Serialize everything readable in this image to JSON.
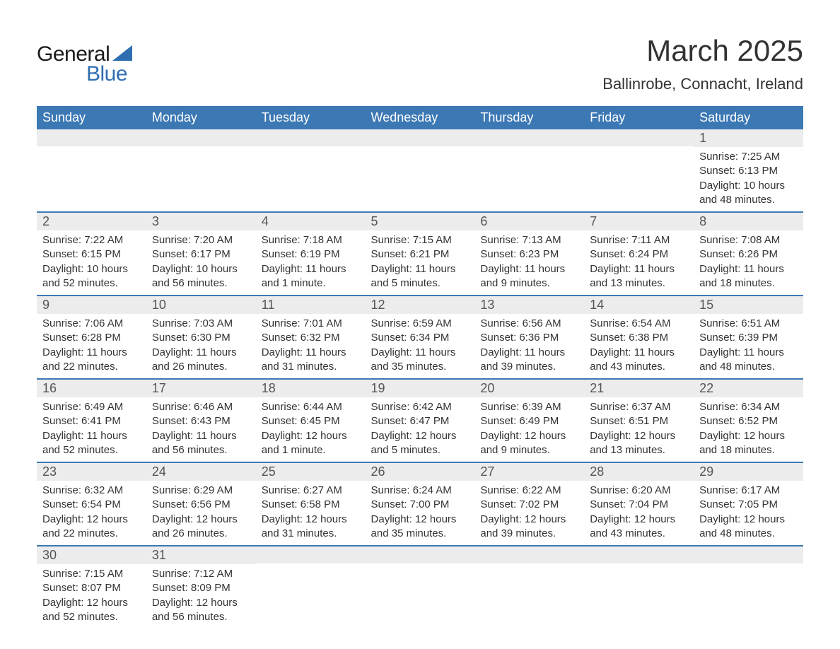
{
  "brand": {
    "word1": "General",
    "word2": "Blue",
    "accent_color": "#2f6fb1"
  },
  "title": "March 2025",
  "location": "Ballinrobe, Connacht, Ireland",
  "colors": {
    "header_bg": "#3c78b4",
    "header_text": "#ffffff",
    "row_divider": "#3c78b4",
    "daynum_bg": "#ececec",
    "daynum_text": "#555555",
    "body_text": "#333333",
    "page_bg": "#ffffff"
  },
  "typography": {
    "title_fontsize": 42,
    "location_fontsize": 22,
    "dayheader_fontsize": 18,
    "daynum_fontsize": 18,
    "body_fontsize": 15
  },
  "day_headers": [
    "Sunday",
    "Monday",
    "Tuesday",
    "Wednesday",
    "Thursday",
    "Friday",
    "Saturday"
  ],
  "weeks": [
    [
      {
        "n": "",
        "sr": "",
        "ss": "",
        "dl": ""
      },
      {
        "n": "",
        "sr": "",
        "ss": "",
        "dl": ""
      },
      {
        "n": "",
        "sr": "",
        "ss": "",
        "dl": ""
      },
      {
        "n": "",
        "sr": "",
        "ss": "",
        "dl": ""
      },
      {
        "n": "",
        "sr": "",
        "ss": "",
        "dl": ""
      },
      {
        "n": "",
        "sr": "",
        "ss": "",
        "dl": ""
      },
      {
        "n": "1",
        "sr": "Sunrise: 7:25 AM",
        "ss": "Sunset: 6:13 PM",
        "dl": "Daylight: 10 hours and 48 minutes."
      }
    ],
    [
      {
        "n": "2",
        "sr": "Sunrise: 7:22 AM",
        "ss": "Sunset: 6:15 PM",
        "dl": "Daylight: 10 hours and 52 minutes."
      },
      {
        "n": "3",
        "sr": "Sunrise: 7:20 AM",
        "ss": "Sunset: 6:17 PM",
        "dl": "Daylight: 10 hours and 56 minutes."
      },
      {
        "n": "4",
        "sr": "Sunrise: 7:18 AM",
        "ss": "Sunset: 6:19 PM",
        "dl": "Daylight: 11 hours and 1 minute."
      },
      {
        "n": "5",
        "sr": "Sunrise: 7:15 AM",
        "ss": "Sunset: 6:21 PM",
        "dl": "Daylight: 11 hours and 5 minutes."
      },
      {
        "n": "6",
        "sr": "Sunrise: 7:13 AM",
        "ss": "Sunset: 6:23 PM",
        "dl": "Daylight: 11 hours and 9 minutes."
      },
      {
        "n": "7",
        "sr": "Sunrise: 7:11 AM",
        "ss": "Sunset: 6:24 PM",
        "dl": "Daylight: 11 hours and 13 minutes."
      },
      {
        "n": "8",
        "sr": "Sunrise: 7:08 AM",
        "ss": "Sunset: 6:26 PM",
        "dl": "Daylight: 11 hours and 18 minutes."
      }
    ],
    [
      {
        "n": "9",
        "sr": "Sunrise: 7:06 AM",
        "ss": "Sunset: 6:28 PM",
        "dl": "Daylight: 11 hours and 22 minutes."
      },
      {
        "n": "10",
        "sr": "Sunrise: 7:03 AM",
        "ss": "Sunset: 6:30 PM",
        "dl": "Daylight: 11 hours and 26 minutes."
      },
      {
        "n": "11",
        "sr": "Sunrise: 7:01 AM",
        "ss": "Sunset: 6:32 PM",
        "dl": "Daylight: 11 hours and 31 minutes."
      },
      {
        "n": "12",
        "sr": "Sunrise: 6:59 AM",
        "ss": "Sunset: 6:34 PM",
        "dl": "Daylight: 11 hours and 35 minutes."
      },
      {
        "n": "13",
        "sr": "Sunrise: 6:56 AM",
        "ss": "Sunset: 6:36 PM",
        "dl": "Daylight: 11 hours and 39 minutes."
      },
      {
        "n": "14",
        "sr": "Sunrise: 6:54 AM",
        "ss": "Sunset: 6:38 PM",
        "dl": "Daylight: 11 hours and 43 minutes."
      },
      {
        "n": "15",
        "sr": "Sunrise: 6:51 AM",
        "ss": "Sunset: 6:39 PM",
        "dl": "Daylight: 11 hours and 48 minutes."
      }
    ],
    [
      {
        "n": "16",
        "sr": "Sunrise: 6:49 AM",
        "ss": "Sunset: 6:41 PM",
        "dl": "Daylight: 11 hours and 52 minutes."
      },
      {
        "n": "17",
        "sr": "Sunrise: 6:46 AM",
        "ss": "Sunset: 6:43 PM",
        "dl": "Daylight: 11 hours and 56 minutes."
      },
      {
        "n": "18",
        "sr": "Sunrise: 6:44 AM",
        "ss": "Sunset: 6:45 PM",
        "dl": "Daylight: 12 hours and 1 minute."
      },
      {
        "n": "19",
        "sr": "Sunrise: 6:42 AM",
        "ss": "Sunset: 6:47 PM",
        "dl": "Daylight: 12 hours and 5 minutes."
      },
      {
        "n": "20",
        "sr": "Sunrise: 6:39 AM",
        "ss": "Sunset: 6:49 PM",
        "dl": "Daylight: 12 hours and 9 minutes."
      },
      {
        "n": "21",
        "sr": "Sunrise: 6:37 AM",
        "ss": "Sunset: 6:51 PM",
        "dl": "Daylight: 12 hours and 13 minutes."
      },
      {
        "n": "22",
        "sr": "Sunrise: 6:34 AM",
        "ss": "Sunset: 6:52 PM",
        "dl": "Daylight: 12 hours and 18 minutes."
      }
    ],
    [
      {
        "n": "23",
        "sr": "Sunrise: 6:32 AM",
        "ss": "Sunset: 6:54 PM",
        "dl": "Daylight: 12 hours and 22 minutes."
      },
      {
        "n": "24",
        "sr": "Sunrise: 6:29 AM",
        "ss": "Sunset: 6:56 PM",
        "dl": "Daylight: 12 hours and 26 minutes."
      },
      {
        "n": "25",
        "sr": "Sunrise: 6:27 AM",
        "ss": "Sunset: 6:58 PM",
        "dl": "Daylight: 12 hours and 31 minutes."
      },
      {
        "n": "26",
        "sr": "Sunrise: 6:24 AM",
        "ss": "Sunset: 7:00 PM",
        "dl": "Daylight: 12 hours and 35 minutes."
      },
      {
        "n": "27",
        "sr": "Sunrise: 6:22 AM",
        "ss": "Sunset: 7:02 PM",
        "dl": "Daylight: 12 hours and 39 minutes."
      },
      {
        "n": "28",
        "sr": "Sunrise: 6:20 AM",
        "ss": "Sunset: 7:04 PM",
        "dl": "Daylight: 12 hours and 43 minutes."
      },
      {
        "n": "29",
        "sr": "Sunrise: 6:17 AM",
        "ss": "Sunset: 7:05 PM",
        "dl": "Daylight: 12 hours and 48 minutes."
      }
    ],
    [
      {
        "n": "30",
        "sr": "Sunrise: 7:15 AM",
        "ss": "Sunset: 8:07 PM",
        "dl": "Daylight: 12 hours and 52 minutes."
      },
      {
        "n": "31",
        "sr": "Sunrise: 7:12 AM",
        "ss": "Sunset: 8:09 PM",
        "dl": "Daylight: 12 hours and 56 minutes."
      },
      {
        "n": "",
        "sr": "",
        "ss": "",
        "dl": ""
      },
      {
        "n": "",
        "sr": "",
        "ss": "",
        "dl": ""
      },
      {
        "n": "",
        "sr": "",
        "ss": "",
        "dl": ""
      },
      {
        "n": "",
        "sr": "",
        "ss": "",
        "dl": ""
      },
      {
        "n": "",
        "sr": "",
        "ss": "",
        "dl": ""
      }
    ]
  ]
}
